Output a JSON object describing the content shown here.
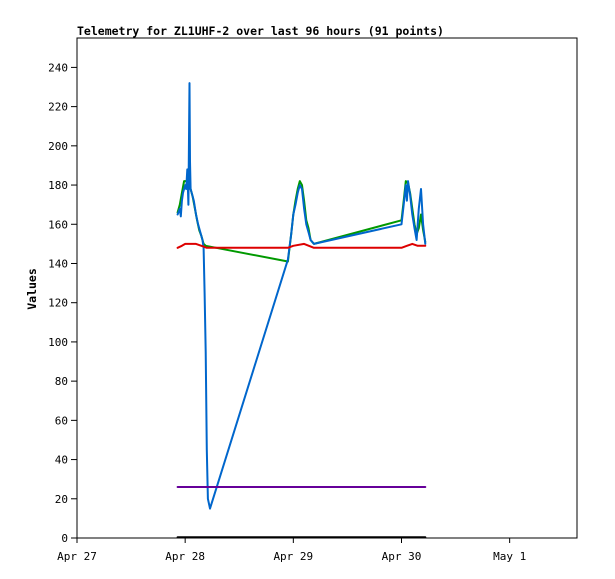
{
  "chart_data": {
    "type": "line",
    "title": "Telemetry for ZL1UHF-2 over last 96 hours (91 points)",
    "xlabel": "",
    "ylabel": "Values",
    "xlim": [
      0,
      4.3
    ],
    "ylim": [
      0,
      240
    ],
    "x_ticks": [
      {
        "x": 0,
        "label": "Apr 27"
      },
      {
        "x": 1,
        "label": "Apr 28"
      },
      {
        "x": 2,
        "label": "Apr 29"
      },
      {
        "x": 3,
        "label": "Apr 30"
      },
      {
        "x": 4,
        "label": "May 1"
      }
    ],
    "y_ticks": [
      0,
      20,
      40,
      60,
      80,
      100,
      120,
      140,
      160,
      180,
      200,
      220,
      240
    ],
    "grid": false,
    "legend": "none",
    "series": [
      {
        "color": "#009900",
        "points": [
          [
            0.93,
            166
          ],
          [
            0.95,
            170
          ],
          [
            0.97,
            176
          ],
          [
            0.99,
            182
          ],
          [
            1.01,
            182
          ],
          [
            1.03,
            181
          ],
          [
            1.05,
            178
          ],
          [
            1.07,
            174
          ],
          [
            1.09,
            168
          ],
          [
            1.11,
            162
          ],
          [
            1.13,
            157
          ],
          [
            1.15,
            154
          ],
          [
            1.17,
            150
          ],
          [
            1.19,
            149
          ],
          [
            1.95,
            141
          ],
          [
            1.98,
            155
          ],
          [
            2.0,
            165
          ],
          [
            2.02,
            172
          ],
          [
            2.04,
            178
          ],
          [
            2.06,
            182
          ],
          [
            2.08,
            180
          ],
          [
            2.1,
            172
          ],
          [
            2.12,
            162
          ],
          [
            2.14,
            158
          ],
          [
            2.16,
            152
          ],
          [
            2.19,
            150
          ],
          [
            3.0,
            162
          ],
          [
            3.02,
            172
          ],
          [
            3.04,
            182
          ],
          [
            3.06,
            181
          ],
          [
            3.08,
            176
          ],
          [
            3.1,
            168
          ],
          [
            3.12,
            160
          ],
          [
            3.14,
            155
          ],
          [
            3.16,
            158
          ],
          [
            3.18,
            165
          ],
          [
            3.2,
            157
          ],
          [
            3.22,
            151
          ]
        ]
      },
      {
        "color": "#0066cc",
        "points": [
          [
            0.93,
            165
          ],
          [
            0.95,
            168
          ],
          [
            0.96,
            164
          ],
          [
            0.97,
            172
          ],
          [
            0.98,
            176
          ],
          [
            0.99,
            178
          ],
          [
            1.0,
            180
          ],
          [
            1.01,
            178
          ],
          [
            1.02,
            188
          ],
          [
            1.03,
            170
          ],
          [
            1.04,
            232
          ],
          [
            1.045,
            192
          ],
          [
            1.05,
            178
          ],
          [
            1.06,
            176
          ],
          [
            1.08,
            172
          ],
          [
            1.1,
            165
          ],
          [
            1.12,
            160
          ],
          [
            1.14,
            156
          ],
          [
            1.16,
            152
          ],
          [
            1.17,
            148
          ],
          [
            1.18,
            125
          ],
          [
            1.19,
            95
          ],
          [
            1.2,
            45
          ],
          [
            1.21,
            20
          ],
          [
            1.23,
            15
          ],
          [
            1.95,
            142
          ],
          [
            1.98,
            155
          ],
          [
            2.0,
            165
          ],
          [
            2.02,
            170
          ],
          [
            2.04,
            176
          ],
          [
            2.06,
            180
          ],
          [
            2.08,
            178
          ],
          [
            2.1,
            168
          ],
          [
            2.12,
            160
          ],
          [
            2.14,
            156
          ],
          [
            2.16,
            152
          ],
          [
            2.19,
            150
          ],
          [
            3.0,
            160
          ],
          [
            3.02,
            170
          ],
          [
            3.04,
            180
          ],
          [
            3.05,
            172
          ],
          [
            3.06,
            182
          ],
          [
            3.08,
            175
          ],
          [
            3.1,
            165
          ],
          [
            3.12,
            158
          ],
          [
            3.14,
            152
          ],
          [
            3.16,
            168
          ],
          [
            3.18,
            178
          ],
          [
            3.2,
            160
          ],
          [
            3.22,
            150
          ]
        ]
      },
      {
        "color": "#dd0000",
        "points": [
          [
            0.93,
            148
          ],
          [
            0.97,
            149
          ],
          [
            1.0,
            150
          ],
          [
            1.05,
            150
          ],
          [
            1.1,
            150
          ],
          [
            1.15,
            149
          ],
          [
            1.2,
            148
          ],
          [
            1.5,
            148
          ],
          [
            1.8,
            148
          ],
          [
            1.95,
            148
          ],
          [
            2.0,
            149
          ],
          [
            2.1,
            150
          ],
          [
            2.19,
            148
          ],
          [
            2.5,
            148
          ],
          [
            3.0,
            148
          ],
          [
            3.05,
            149
          ],
          [
            3.1,
            150
          ],
          [
            3.15,
            149
          ],
          [
            3.22,
            149
          ]
        ]
      },
      {
        "color": "#660099",
        "points": [
          [
            0.93,
            26
          ],
          [
            3.22,
            26
          ]
        ]
      },
      {
        "color": "#000000",
        "points": [
          [
            0.93,
            0.4
          ],
          [
            3.22,
            0.4
          ]
        ]
      }
    ]
  }
}
